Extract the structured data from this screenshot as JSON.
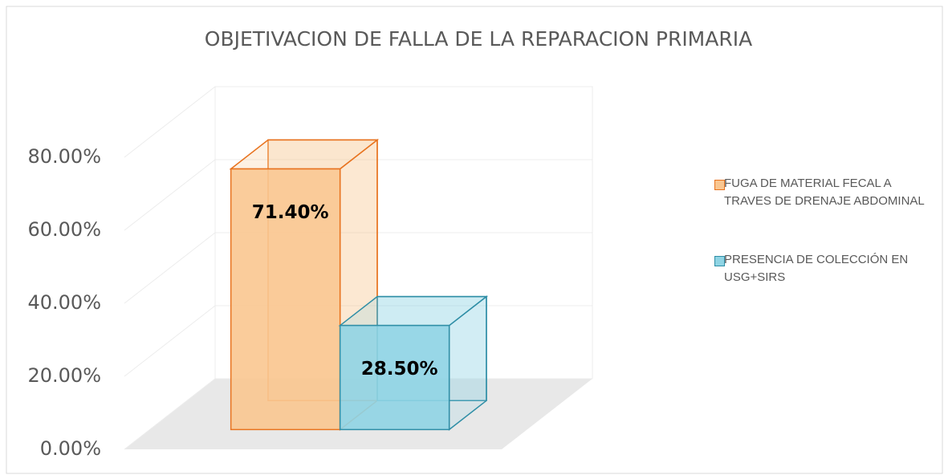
{
  "chart_data": {
    "type": "bar3d",
    "title": "OBJETIVACION DE FALLA DE LA REPARACION PRIMARIA",
    "series": [
      {
        "name": "FUGA DE MATERIAL FECAL A TRAVES DE DRENAJE ABDOMINAL",
        "color": "#f9c690",
        "edge": "#e8731f",
        "values": [
          71.4
        ],
        "value_labels": [
          "71.40%"
        ]
      },
      {
        "name": "PRESENCIA DE COLECCIÓN EN USG+SIRS",
        "color": "#8fd4e4",
        "edge": "#2f8ea6",
        "values": [
          28.5
        ],
        "value_labels": [
          "28.50%"
        ]
      }
    ],
    "ylim": [
      0,
      80
    ],
    "yticks": [
      {
        "value": 0,
        "label": "0.00%"
      },
      {
        "value": 20,
        "label": "20.00%"
      },
      {
        "value": 40,
        "label": "40.00%"
      },
      {
        "value": 60,
        "label": "60.00%"
      },
      {
        "value": 80,
        "label": "80.00%"
      }
    ],
    "grid": true,
    "legend": "right"
  }
}
